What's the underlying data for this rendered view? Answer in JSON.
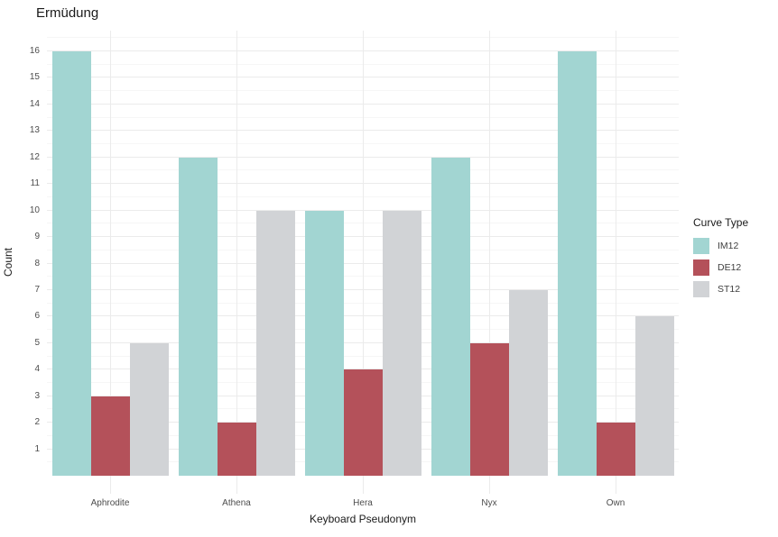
{
  "chart_data": {
    "type": "bar",
    "grouping": "grouped",
    "title": "Ermüdung",
    "xlabel": "Keyboard Pseudonym",
    "ylabel": "Count",
    "legend_title": "Curve Type",
    "legend_position": "right",
    "grid": "on",
    "categories": [
      "Aphrodite",
      "Athena",
      "Hera",
      "Nyx",
      "Own"
    ],
    "series": [
      {
        "name": "IM12",
        "color": "#A2D5D2",
        "values": [
          16,
          12,
          10,
          12,
          16
        ]
      },
      {
        "name": "DE12",
        "color": "#B4515A",
        "values": [
          3,
          2,
          4,
          5,
          2
        ]
      },
      {
        "name": "ST12",
        "color": "#D1D3D6",
        "values": [
          5,
          10,
          10,
          7,
          6
        ]
      }
    ],
    "y_ticks": [
      1,
      2,
      3,
      4,
      5,
      6,
      7,
      8,
      9,
      10,
      11,
      12,
      13,
      14,
      15,
      16
    ],
    "ylim": [
      0,
      16.8
    ],
    "colors": {
      "grid_major": "#EBEBEB",
      "grid_minor": "#F6F6F6",
      "tick_text": "#4d4d4d",
      "title_text": "#1a1a1a",
      "background": "#ffffff"
    }
  }
}
